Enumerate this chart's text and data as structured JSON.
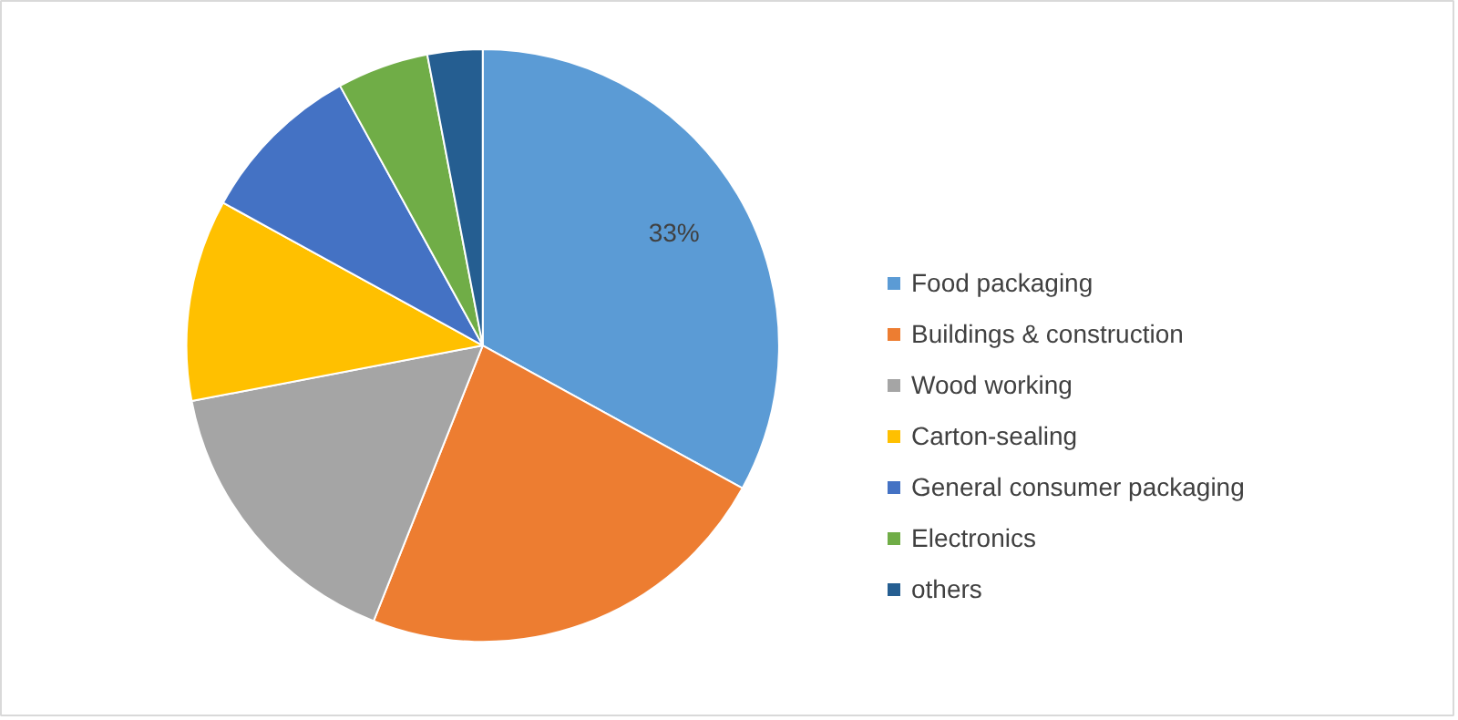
{
  "chart_data": {
    "type": "pie",
    "categories": [
      "Food packaging",
      "Buildings & construction",
      "Wood working",
      "Carton-sealing",
      "General consumer packaging",
      "Electronics",
      "others"
    ],
    "values": [
      33,
      23,
      16,
      11,
      9,
      5,
      3
    ],
    "colors": [
      "#5b9bd5",
      "#ed7d31",
      "#a5a5a5",
      "#ffc000",
      "#4472c4",
      "#70ad47",
      "#255e91"
    ],
    "value_labels": [
      "33%",
      null,
      null,
      null,
      null,
      null,
      null
    ],
    "legend": "right"
  }
}
